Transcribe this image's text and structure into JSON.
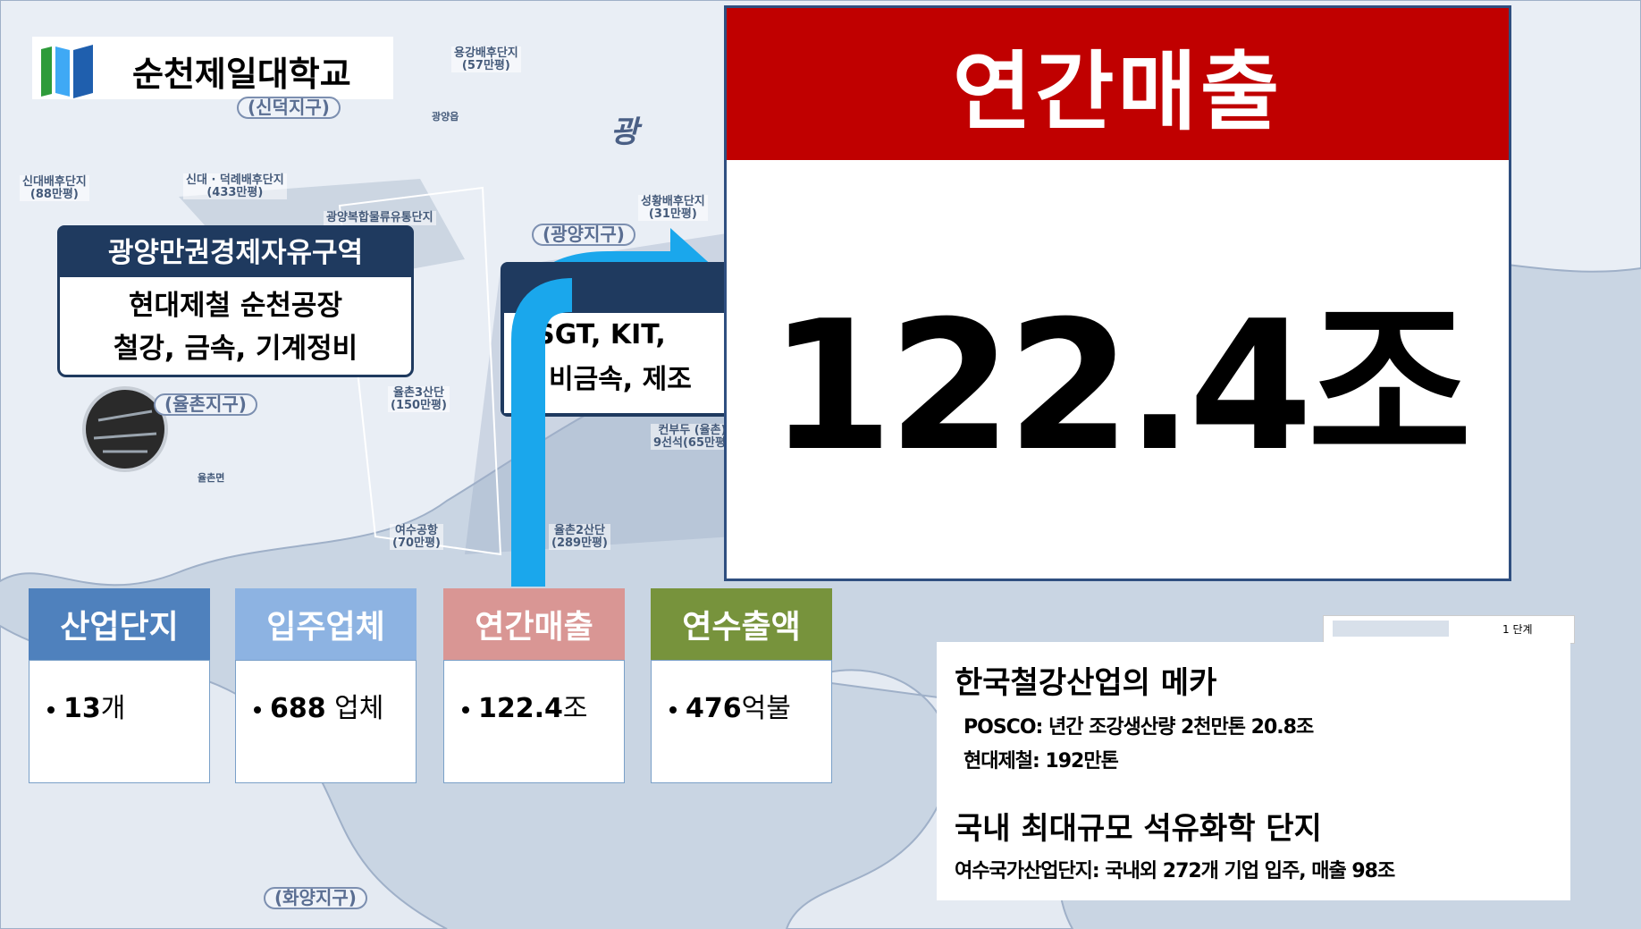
{
  "header": {
    "logo_text": "순천제일대학교"
  },
  "map_labels": [
    {
      "name": "용강배후단지",
      "area": "(57만평)"
    },
    {
      "name": "(신덕지구)"
    },
    {
      "name": "광양읍"
    },
    {
      "name": "신대배후단지",
      "area": "(88만평)"
    },
    {
      "name": "신대 · 덕례배후단지",
      "area": "(433만평)"
    },
    {
      "name": "광양복합물류유통단지"
    },
    {
      "name": "성황배후단지",
      "area": "(31만평)"
    },
    {
      "name": "(광양지구)"
    },
    {
      "name": "(율촌지구)"
    },
    {
      "name": "율촌3산단",
      "area": "(150만평)"
    },
    {
      "name": "컨부두 (율촌)",
      "area": "9선석(65만평)"
    },
    {
      "name": "율촌면"
    },
    {
      "name": "여수공항",
      "area": "(70만평)"
    },
    {
      "name": "율촌2산단",
      "area": "(289만평)"
    },
    {
      "name": "(화양지구)"
    },
    {
      "name": "광"
    }
  ],
  "callout": {
    "title": "광양만권경제자유구역",
    "lines": [
      "현대제철 순천공장",
      "철강, 금속, 기계정비"
    ]
  },
  "callout2": {
    "lines": [
      "HSGT,  KIT,",
      "비금속, 제조"
    ]
  },
  "popup": {
    "title": "연간매출",
    "value": "122.4조"
  },
  "tiles": [
    {
      "title": "산업단지",
      "number": "13",
      "unit": "개"
    },
    {
      "title": "입주업체",
      "number": "688",
      "unit": " 업체"
    },
    {
      "title": "연간매출",
      "number": "122.4",
      "unit": "조"
    },
    {
      "title": "연수출액",
      "number": "476",
      "unit": "억불"
    }
  ],
  "legend": {
    "label": "1 단계"
  },
  "info": {
    "heading1": "한국철강산업의 메카",
    "lines1": [
      "POSCO: 년간 조강생산량 2천만톤  20.8조",
      "현대제철: 192만톤"
    ],
    "heading2": "국내 최대규모 석유화학 단지",
    "lines2": [
      "여수국가산업단지: 국내외 272개 기업 입주, 매출 98조"
    ]
  }
}
